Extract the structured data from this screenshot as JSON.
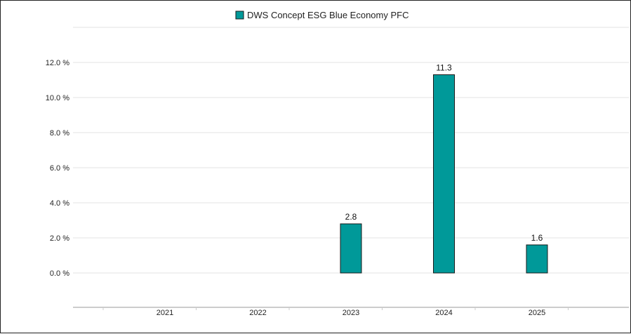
{
  "chart_data": {
    "type": "bar",
    "categories": [
      "2021",
      "2022",
      "2023",
      "2024",
      "2025"
    ],
    "series": [
      {
        "name": "DWS Concept ESG Blue Economy PFC",
        "values": [
          null,
          null,
          2.8,
          11.3,
          1.6
        ],
        "color": "#009999"
      }
    ],
    "data_labels": [
      "",
      "",
      "2.8",
      "11.3",
      "1.6"
    ],
    "ylim": [
      0,
      12
    ],
    "y_ticks": [
      0,
      2,
      4,
      6,
      8,
      10,
      12
    ],
    "y_tick_labels": [
      "0.0 %",
      "2.0 %",
      "4.0 %",
      "6.0 %",
      "8.0 %",
      "10.0 %",
      "12.0 %"
    ],
    "grid": true,
    "legend_position": "top-center",
    "colors": {
      "bar": "#009999",
      "bar_stroke": "#1a1a1a",
      "grid": "#e3e3e3"
    }
  }
}
